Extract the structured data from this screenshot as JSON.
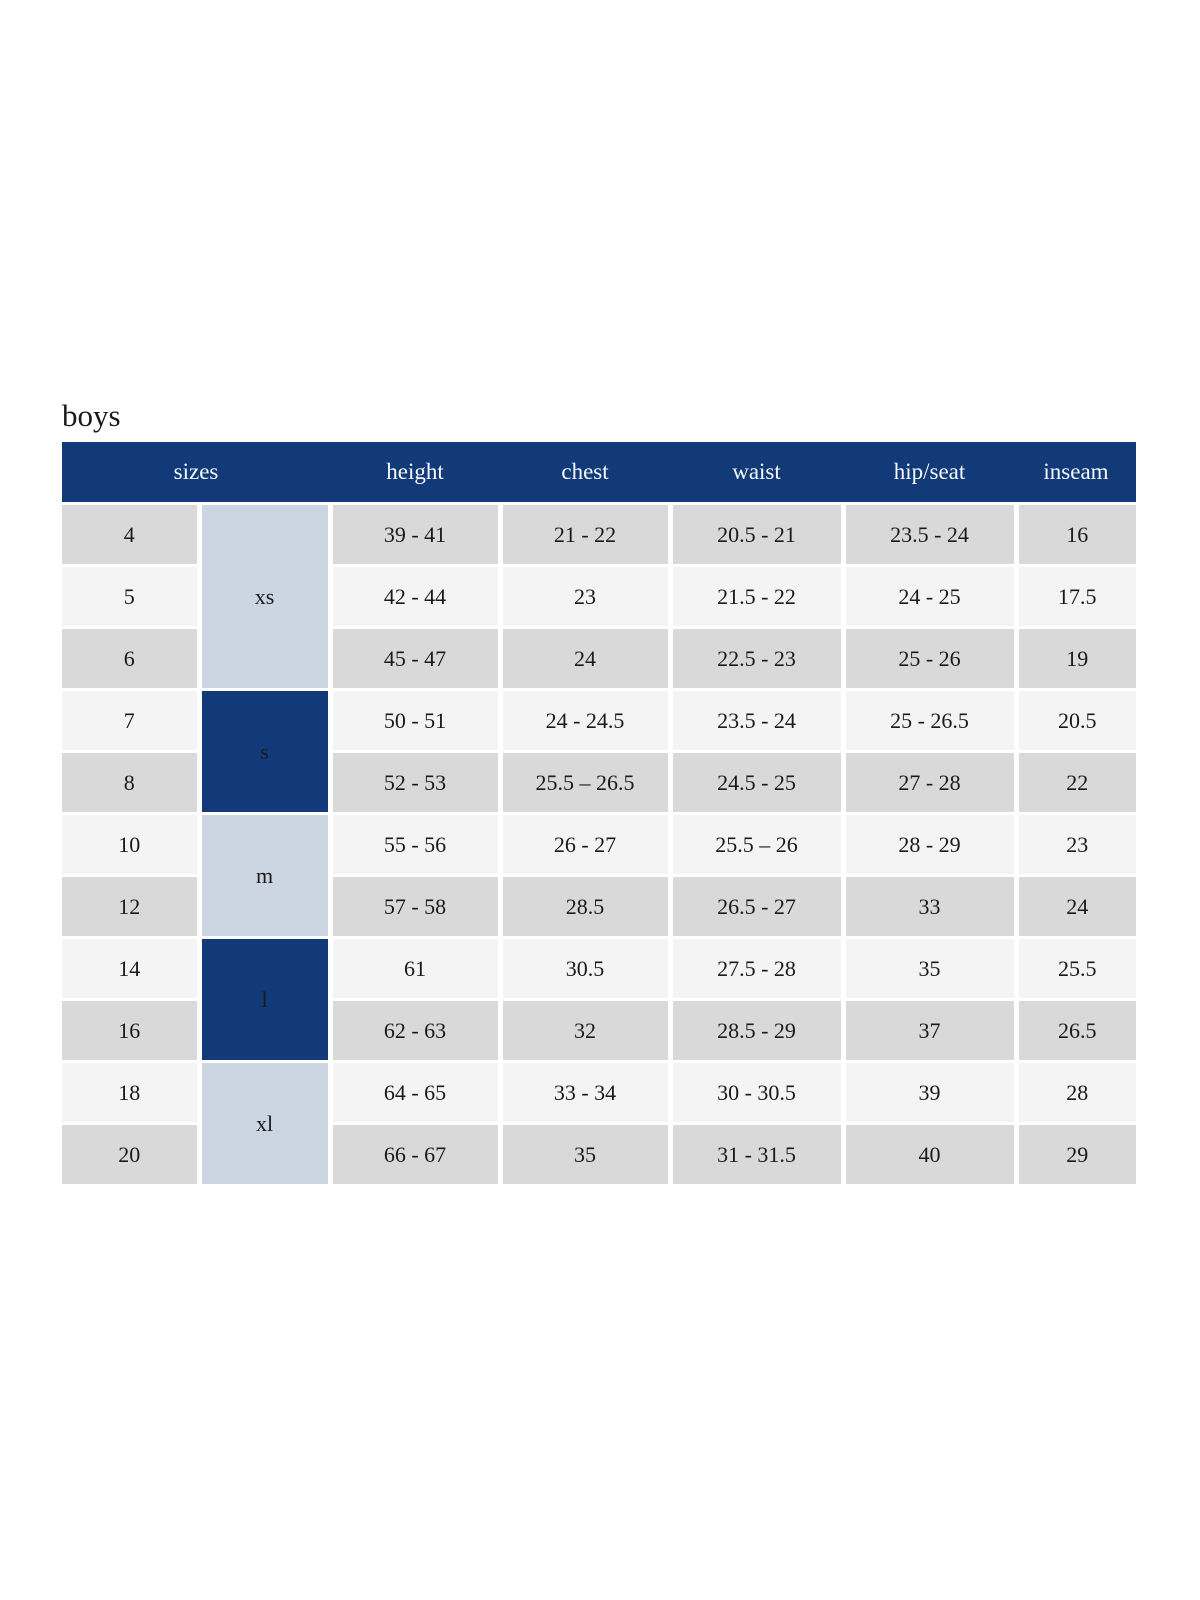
{
  "title": "boys",
  "colors": {
    "navy": "#123a78",
    "light_blue": "#ccd6e3",
    "row_dark": "#d9d9d9",
    "row_light": "#f4f4f4",
    "body_text": "#1a1a1a",
    "header_text": "#f7f9fc",
    "page_bg": "#ffffff"
  },
  "table": {
    "headers": [
      "sizes",
      "height",
      "chest",
      "waist",
      "hip/seat",
      "inseam"
    ],
    "groups": [
      {
        "label": "xs",
        "variant": "light",
        "rows": [
          {
            "size": "4",
            "height": "39 - 41",
            "chest": "21 - 22",
            "waist": "20.5 - 21",
            "hip_seat": "23.5 - 24",
            "inseam": "16"
          },
          {
            "size": "5",
            "height": "42 - 44",
            "chest": "23",
            "waist": "21.5 - 22",
            "hip_seat": "24 - 25",
            "inseam": "17.5"
          },
          {
            "size": "6",
            "height": "45 - 47",
            "chest": "24",
            "waist": "22.5 - 23",
            "hip_seat": "25 - 26",
            "inseam": "19"
          }
        ]
      },
      {
        "label": "s",
        "variant": "dark",
        "rows": [
          {
            "size": "7",
            "height": "50 - 51",
            "chest": "24 - 24.5",
            "waist": "23.5 - 24",
            "hip_seat": "25 - 26.5",
            "inseam": "20.5"
          },
          {
            "size": "8",
            "height": "52 - 53",
            "chest": "25.5 – 26.5",
            "waist": "24.5 - 25",
            "hip_seat": "27 - 28",
            "inseam": "22"
          }
        ]
      },
      {
        "label": "m",
        "variant": "light",
        "rows": [
          {
            "size": "10",
            "height": "55 - 56",
            "chest": "26 - 27",
            "waist": "25.5 – 26",
            "hip_seat": "28 - 29",
            "inseam": "23"
          },
          {
            "size": "12",
            "height": "57 - 58",
            "chest": "28.5",
            "waist": "26.5 - 27",
            "hip_seat": "33",
            "inseam": "24"
          }
        ]
      },
      {
        "label": "l",
        "variant": "dark",
        "rows": [
          {
            "size": "14",
            "height": "61",
            "chest": "30.5",
            "waist": "27.5 - 28",
            "hip_seat": "35",
            "inseam": "25.5"
          },
          {
            "size": "16",
            "height": "62 - 63",
            "chest": "32",
            "waist": "28.5 - 29",
            "hip_seat": "37",
            "inseam": "26.5"
          }
        ]
      },
      {
        "label": "xl",
        "variant": "light",
        "rows": [
          {
            "size": "18",
            "height": "64 - 65",
            "chest": "33 - 34",
            "waist": "30 - 30.5",
            "hip_seat": "39",
            "inseam": "28"
          },
          {
            "size": "20",
            "height": "66 - 67",
            "chest": "35",
            "waist": "31 - 31.5",
            "hip_seat": "40",
            "inseam": "29"
          }
        ]
      }
    ]
  }
}
